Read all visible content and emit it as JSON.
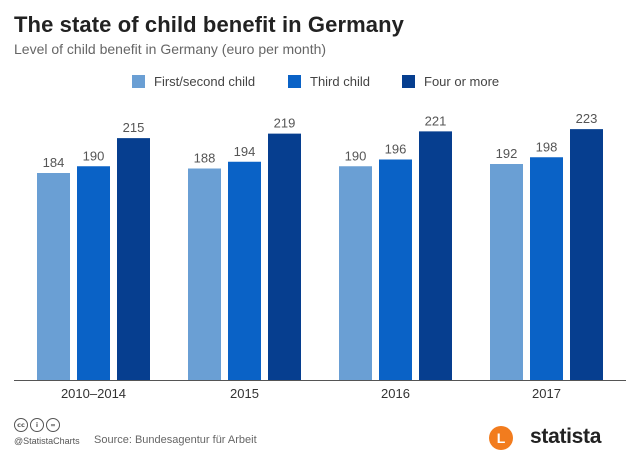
{
  "title": "The state of child benefit in Germany",
  "subtitle": "Level of child benefit in Germany (euro per month)",
  "footer": {
    "cc_icons": [
      "cc",
      "i",
      "="
    ],
    "handle": "@StatistaCharts",
    "source": "Source: Bundesagentur für Arbeit",
    "logo_letter": "L",
    "brand": "statista"
  },
  "colors": {
    "first_second": "#6a9fd4",
    "third": "#0a62c6",
    "four_or_more": "#063e8f",
    "baseline": "#555555",
    "value_label": "#555555",
    "tick_label": "#333333"
  },
  "chart_data": {
    "type": "bar",
    "title": "The state of child benefit in Germany",
    "subtitle": "Level of child benefit in Germany (euro per month)",
    "categories": [
      "2010–2014",
      "2015",
      "2016",
      "2017"
    ],
    "series": [
      {
        "name": "First/second child",
        "values": [
          184,
          188,
          190,
          192
        ],
        "color": "#6a9fd4"
      },
      {
        "name": "Third child",
        "values": [
          190,
          194,
          196,
          198
        ],
        "color": "#0a62c6"
      },
      {
        "name": "Four or more",
        "values": [
          215,
          219,
          221,
          223
        ],
        "color": "#063e8f"
      }
    ],
    "ylim": [
      0,
      250
    ],
    "grid": false,
    "legend": "top-center",
    "data_labels": true
  }
}
